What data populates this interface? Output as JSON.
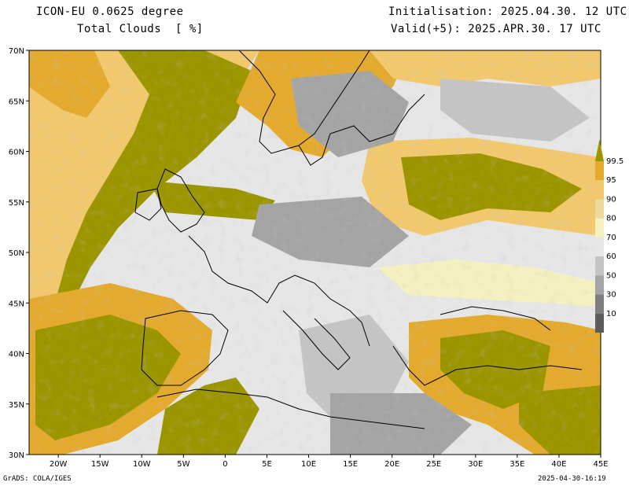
{
  "header": {
    "model": "ICON-EU 0.0625 degree",
    "field": "Total Clouds  [ %]",
    "init": "Initialisation: 2025.04.30. 12 UTC",
    "valid": "Valid(+5): 2025.APR.30. 17 UTC"
  },
  "footer": {
    "credit": "GrADS: COLA/IGES",
    "timestamp": "2025-04-30-16:19"
  },
  "map": {
    "lat_labels": [
      "70N",
      "65N",
      "60N",
      "55N",
      "50N",
      "45N",
      "40N",
      "35N",
      "30N"
    ],
    "lon_labels": [
      "20W",
      "15W",
      "10W",
      "5W",
      "0",
      "5E",
      "10E",
      "15E",
      "20E",
      "25E",
      "30E",
      "35E",
      "40E",
      "45E"
    ],
    "lat_range": [
      30,
      70
    ],
    "lon_range": [
      -23.5,
      45
    ]
  },
  "legend": {
    "levels": [
      "99.5",
      "95",
      "90",
      "80",
      "70",
      "60",
      "50",
      "30",
      "10"
    ],
    "colors": [
      "#9b9500",
      "#e3aa2e",
      "#f1c86e",
      "#eed99d",
      "#f5f0c0",
      "#e6e6e6",
      "#c4c4c4",
      "#a4a4a4",
      "#7e7e7e",
      "#5c5c5c"
    ]
  },
  "palette": {
    "dense": "#9b9500",
    "orange": "#e3aa2e",
    "tan": "#f1c86e",
    "cream": "#f5f0c0",
    "clear": "#e6e6e6",
    "grey1": "#c4c4c4",
    "grey2": "#a4a4a4",
    "grey3": "#7e7e7e"
  }
}
